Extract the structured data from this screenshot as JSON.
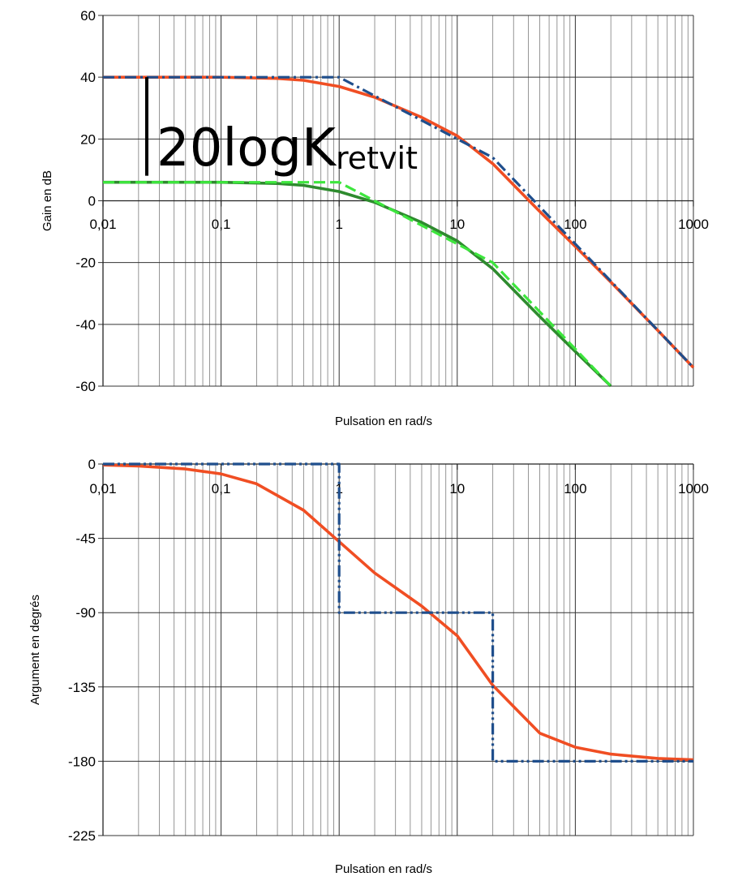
{
  "chart_data": [
    {
      "type": "line",
      "xscale": "log",
      "xlim": [
        0.01,
        1000
      ],
      "ylim": [
        -60,
        60
      ],
      "xlabel": "Pulsation en rad/s",
      "ylabel": "Gain en dB",
      "x_tick_labels": [
        "0,01",
        "0,1",
        "1",
        "10",
        "100",
        "1000"
      ],
      "y_ticks": [
        60,
        40,
        20,
        0,
        -20,
        -40,
        -60
      ],
      "grid": true,
      "annotation": {
        "main": "20logK",
        "sub": "retvit"
      },
      "series": [
        {
          "style": "solid",
          "color": "#f04e23",
          "x": [
            0.01,
            0.1,
            0.3,
            0.5,
            1,
            2,
            5,
            10,
            20,
            50,
            100,
            200,
            500,
            1000
          ],
          "y": [
            40,
            40,
            39.6,
            39,
            37,
            33.5,
            27,
            21,
            12,
            -3.5,
            -14.8,
            -26.3,
            -42,
            -54
          ]
        },
        {
          "style": "dash-dot",
          "color": "#1f4e8c",
          "x": [
            0.01,
            1,
            20,
            1000
          ],
          "y": [
            40,
            40,
            14,
            -54
          ]
        },
        {
          "style": "solid",
          "color": "#2e8b2e",
          "x": [
            0.01,
            0.1,
            0.3,
            0.5,
            1,
            2,
            5,
            10,
            20,
            50,
            100,
            200
          ],
          "y": [
            6,
            6,
            5.6,
            5,
            3,
            -0.5,
            -7,
            -13,
            -22,
            -37.5,
            -48.8,
            -60
          ]
        },
        {
          "style": "dashed",
          "color": "#3de63d",
          "x": [
            0.01,
            1,
            20,
            200
          ],
          "y": [
            6,
            6,
            -20,
            -60
          ]
        }
      ]
    },
    {
      "type": "line",
      "xscale": "log",
      "xlim": [
        0.01,
        1000
      ],
      "ylim": [
        -225,
        0
      ],
      "xlabel": "Pulsation en rad/s",
      "ylabel": "Argument en degrés",
      "x_tick_labels": [
        "0,01",
        "0,1",
        "1",
        "10",
        "100",
        "1000"
      ],
      "y_ticks": [
        0,
        -45,
        -90,
        -135,
        -180,
        -225
      ],
      "grid": true,
      "series": [
        {
          "style": "solid",
          "color": "#f04e23",
          "x": [
            0.01,
            0.02,
            0.05,
            0.1,
            0.2,
            0.5,
            1,
            2,
            5,
            10,
            20,
            50,
            100,
            200,
            500,
            1000
          ],
          "y": [
            -0.6,
            -1.2,
            -3,
            -6,
            -12,
            -28,
            -47,
            -66,
            -86,
            -104,
            -134,
            -163,
            -171.5,
            -175.7,
            -178.3,
            -179.1
          ]
        },
        {
          "style": "dash-dot-dot",
          "color": "#1f4e8c",
          "x": [
            0.01,
            1,
            1,
            20,
            20,
            1000
          ],
          "y": [
            0,
            0,
            -90,
            -90,
            -180,
            -180
          ]
        }
      ]
    }
  ]
}
